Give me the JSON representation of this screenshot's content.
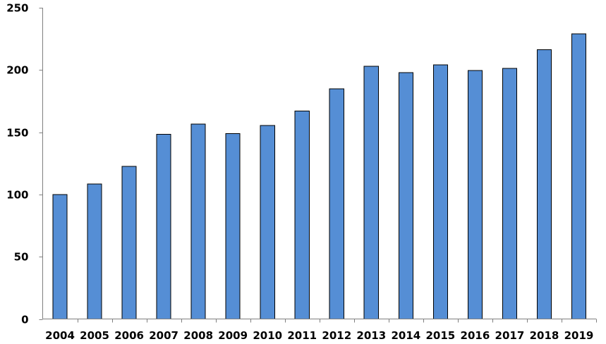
{
  "chart_data": {
    "type": "bar",
    "title": "",
    "xlabel": "",
    "ylabel": "",
    "categories": [
      "2004",
      "2005",
      "2006",
      "2007",
      "2008",
      "2009",
      "2010",
      "2011",
      "2012",
      "2013",
      "2014",
      "2015",
      "2016",
      "2017",
      "2018",
      "2019"
    ],
    "values": [
      100,
      108.5,
      122.5,
      148.3,
      156.6,
      148.9,
      155.5,
      167,
      185,
      203,
      198,
      204.2,
      199.5,
      201.4,
      216.2,
      229
    ],
    "ylim": [
      0,
      250
    ],
    "yticks": [
      0,
      50,
      100,
      150,
      200,
      250
    ],
    "grid": false,
    "legend": "none",
    "colors": {
      "bar_fill": "#558ed5",
      "bar_stroke": "#000000",
      "axis": "#7f7f7f",
      "text": "#000000"
    }
  }
}
